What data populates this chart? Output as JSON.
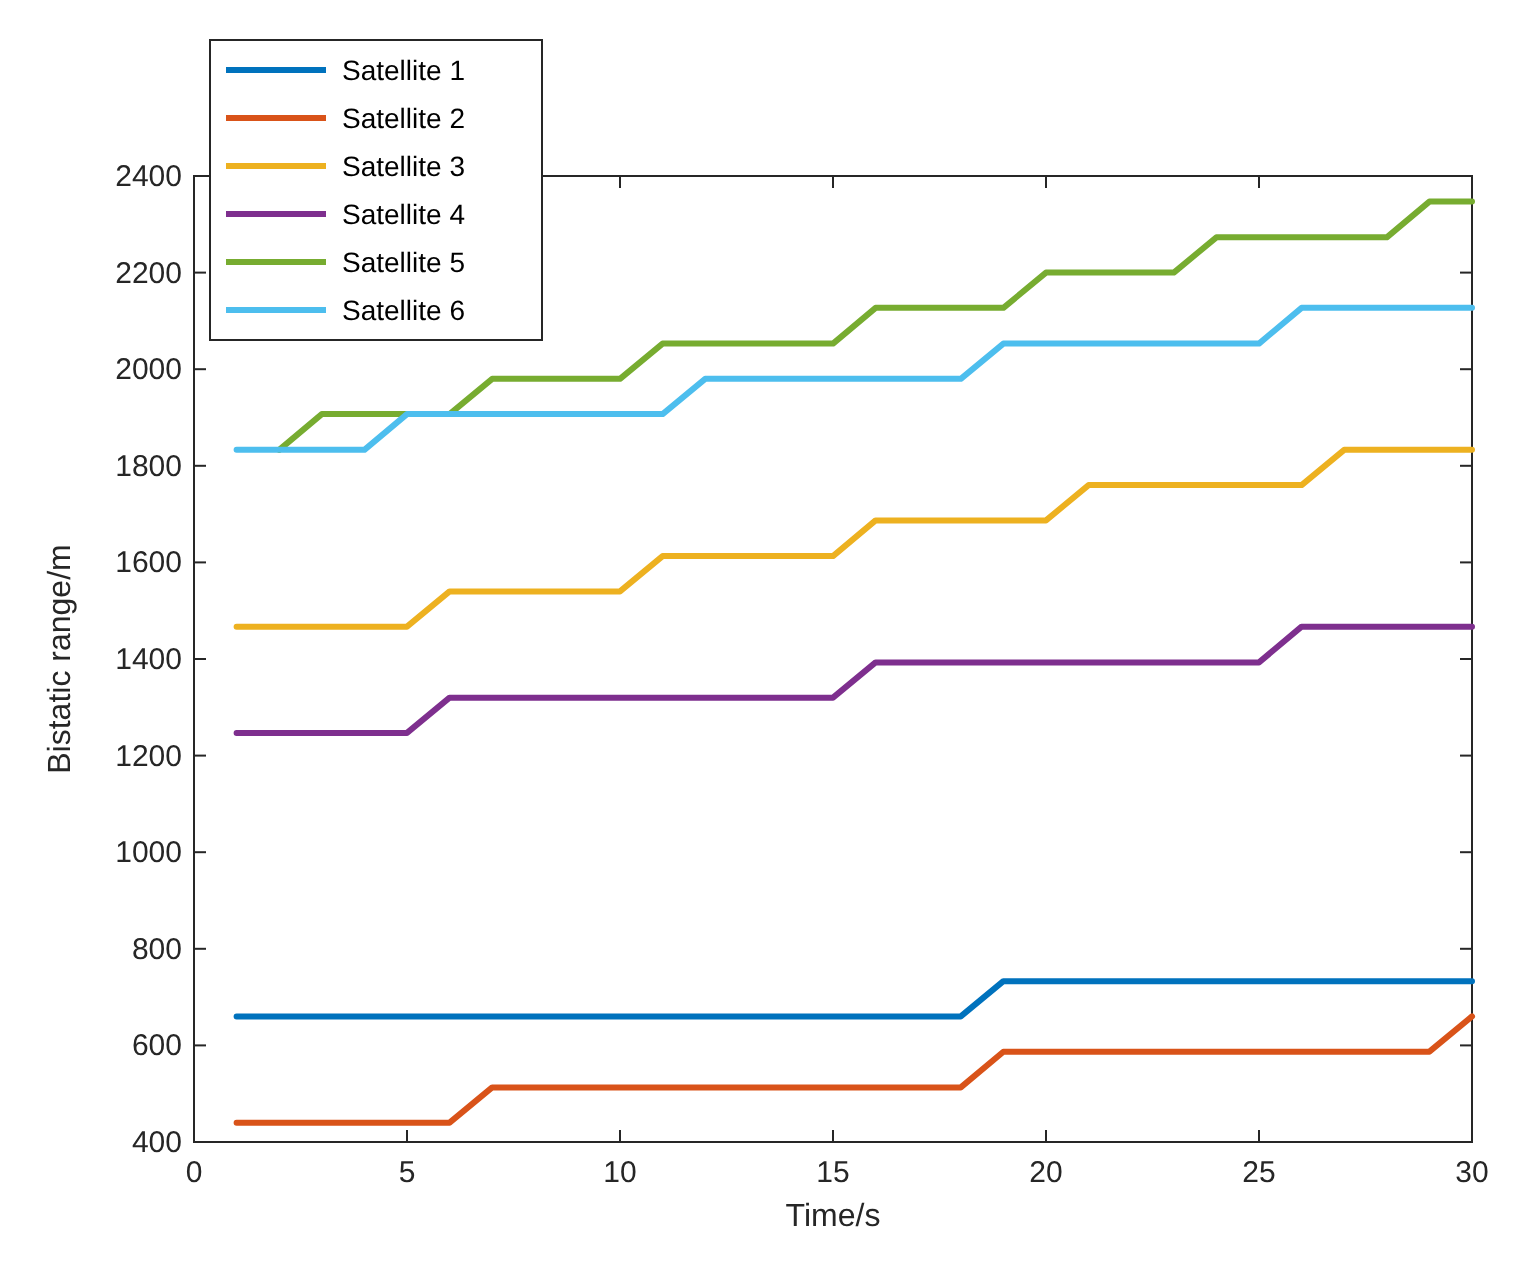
{
  "chart_data": {
    "type": "line",
    "xlabel": "Time/s",
    "ylabel": "Bistatic range/m",
    "x": [
      1,
      2,
      3,
      4,
      5,
      6,
      7,
      8,
      9,
      10,
      11,
      12,
      13,
      14,
      15,
      16,
      17,
      18,
      19,
      20,
      21,
      22,
      23,
      24,
      25,
      26,
      27,
      28,
      29,
      30
    ],
    "series": [
      {
        "name": "Satellite 1",
        "color": "#0072bd",
        "values": [
          660,
          660,
          660,
          660,
          660,
          660,
          660,
          660,
          660,
          660,
          660,
          660,
          660,
          660,
          660,
          660,
          660,
          660,
          733,
          733,
          733,
          733,
          733,
          733,
          733,
          733,
          733,
          733,
          733,
          733
        ]
      },
      {
        "name": "Satellite 2",
        "color": "#d95319",
        "values": [
          440,
          440,
          440,
          440,
          440,
          440,
          513,
          513,
          513,
          513,
          513,
          513,
          513,
          513,
          513,
          513,
          513,
          513,
          587,
          587,
          587,
          587,
          587,
          587,
          587,
          587,
          587,
          587,
          587,
          660
        ]
      },
      {
        "name": "Satellite 3",
        "color": "#edb120",
        "values": [
          1467,
          1467,
          1467,
          1467,
          1467,
          1540,
          1540,
          1540,
          1540,
          1540,
          1613,
          1613,
          1613,
          1613,
          1613,
          1687,
          1687,
          1687,
          1687,
          1687,
          1760,
          1760,
          1760,
          1760,
          1760,
          1760,
          1833,
          1833,
          1833,
          1833
        ]
      },
      {
        "name": "Satellite 4",
        "color": "#7e2f8e",
        "values": [
          1247,
          1247,
          1247,
          1247,
          1247,
          1320,
          1320,
          1320,
          1320,
          1320,
          1320,
          1320,
          1320,
          1320,
          1320,
          1393,
          1393,
          1393,
          1393,
          1393,
          1393,
          1393,
          1393,
          1393,
          1393,
          1467,
          1467,
          1467,
          1467,
          1467
        ]
      },
      {
        "name": "Satellite 5",
        "color": "#77ac30",
        "values": [
          null,
          1833,
          1907,
          1907,
          1907,
          1907,
          1980,
          1980,
          1980,
          1980,
          2053,
          2053,
          2053,
          2053,
          2053,
          2127,
          2127,
          2127,
          2127,
          2200,
          2200,
          2200,
          2200,
          2273,
          2273,
          2273,
          2273,
          2273,
          2347,
          2347
        ]
      },
      {
        "name": "Satellite 6",
        "color": "#4dbeee",
        "values": [
          1833,
          1833,
          1833,
          1833,
          1907,
          1907,
          1907,
          1907,
          1907,
          1907,
          1907,
          1980,
          1980,
          1980,
          1980,
          1980,
          1980,
          1980,
          2053,
          2053,
          2053,
          2053,
          2053,
          2053,
          2053,
          2127,
          2127,
          2127,
          2127,
          2127
        ]
      }
    ],
    "xlim": [
      0,
      30
    ],
    "xticks": [
      0,
      5,
      10,
      15,
      20,
      25,
      30
    ],
    "ylim": [
      400,
      2400
    ],
    "yticks": [
      400,
      600,
      800,
      1000,
      1200,
      1400,
      1600,
      1800,
      2000,
      2200,
      2400
    ],
    "grid": false,
    "legend": "top left",
    "marker": "none",
    "line_style": "solid"
  }
}
